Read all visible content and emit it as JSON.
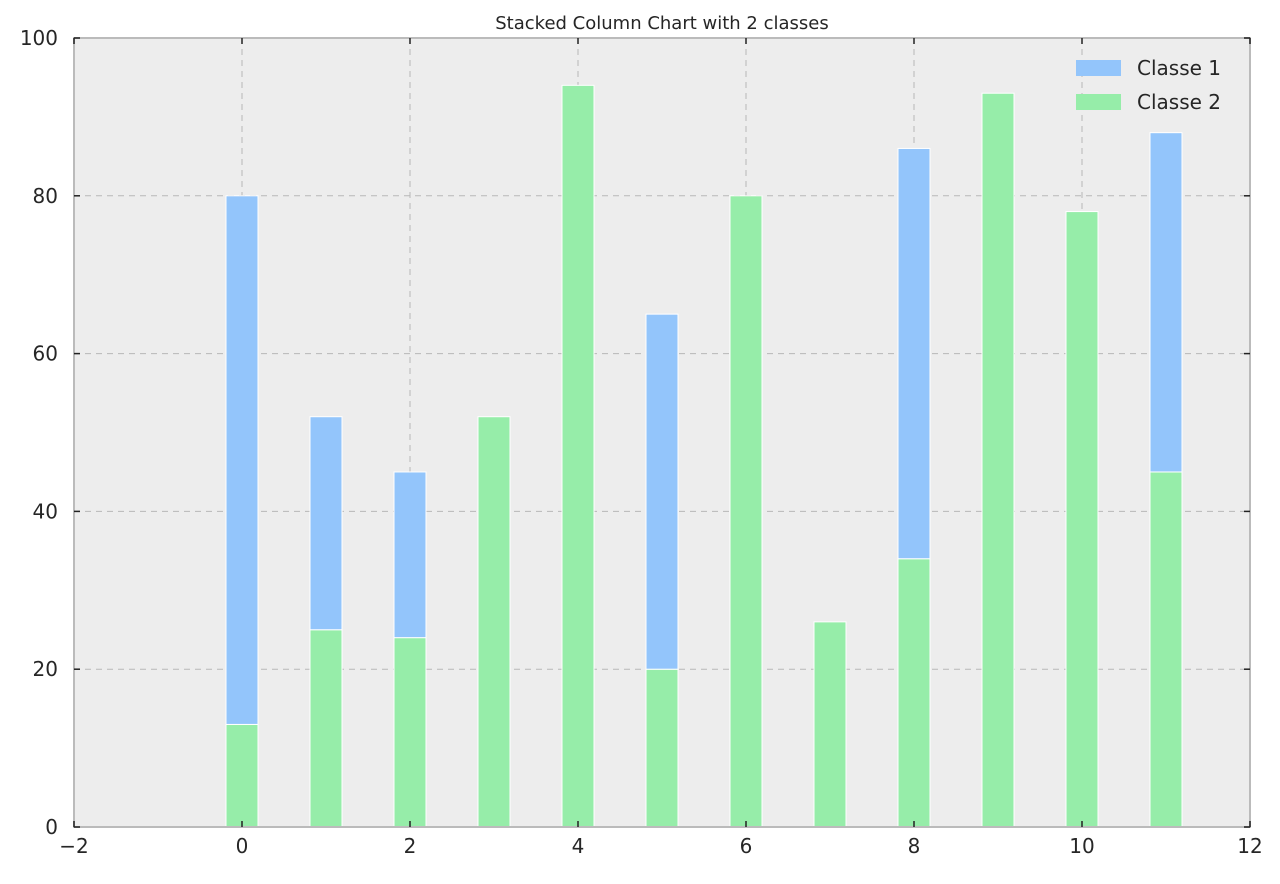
{
  "chart_data": {
    "type": "bar",
    "stacked": true,
    "title": "Stacked Column Chart with 2 classes",
    "xlabel": "",
    "ylabel": "",
    "x": [
      0,
      1,
      2,
      3,
      4,
      5,
      6,
      7,
      8,
      9,
      10,
      11
    ],
    "xlim": [
      -2,
      12
    ],
    "ylim": [
      0,
      100
    ],
    "x_ticks": [
      "−2",
      "0",
      "2",
      "4",
      "6",
      "8",
      "10",
      "12"
    ],
    "x_tick_values": [
      -2,
      0,
      2,
      4,
      6,
      8,
      10,
      12
    ],
    "y_ticks": [
      "0",
      "20",
      "40",
      "60",
      "80",
      "100"
    ],
    "y_tick_values": [
      0,
      20,
      40,
      60,
      80,
      100
    ],
    "grid": true,
    "legend_position": "top-right",
    "series": [
      {
        "name": "Classe 2",
        "color": "#96eda9",
        "values": [
          13,
          25,
          24,
          52,
          94,
          20,
          80,
          26,
          34,
          93,
          78,
          45
        ]
      },
      {
        "name": "Classe 1",
        "color": "#93c5fb",
        "values": [
          67,
          27,
          21,
          0,
          0,
          45,
          0,
          0,
          52,
          0,
          0,
          43
        ]
      }
    ],
    "legend_order": [
      "Classe 1",
      "Classe 2"
    ],
    "colors": {
      "plot_background": "#ededed",
      "axes_edge": "#bbbbbb",
      "grid": "#b8b8b8",
      "tick": "#222222",
      "text": "#262626"
    }
  }
}
